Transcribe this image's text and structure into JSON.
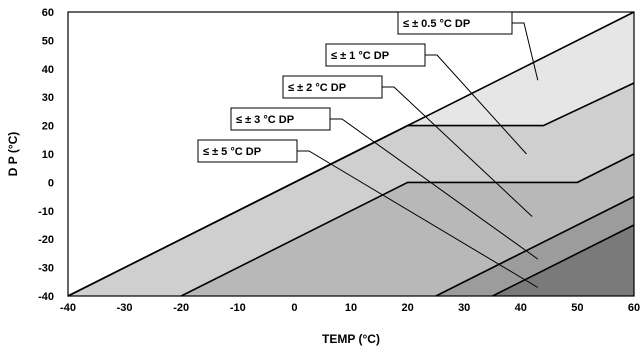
{
  "chart_data": {
    "type": "area",
    "xlabel": "TEMP (°C)",
    "ylabel": "D P (°C)",
    "xlim": [
      -40,
      60
    ],
    "ylim": [
      -40,
      60
    ],
    "xticks": [
      -40,
      -30,
      -20,
      -10,
      0,
      10,
      20,
      30,
      40,
      50,
      60
    ],
    "yticks": [
      -40,
      -30,
      -20,
      -10,
      0,
      10,
      20,
      30,
      40,
      50,
      60
    ],
    "grid": false,
    "series": [
      {
        "name": "≤ ± 0.5 °C DP",
        "color": "#e6e6e6",
        "upper": [
          [
            -40,
            -40
          ],
          [
            60,
            60
          ]
        ],
        "lower": [
          [
            -40,
            -40
          ],
          [
            20,
            20
          ],
          [
            44,
            20
          ],
          [
            60,
            35
          ]
        ],
        "leader_to": [
          43,
          36
        ]
      },
      {
        "name": "≤ ± 1 °C DP",
        "color": "#cfcfcf",
        "upper": [
          [
            -40,
            -40
          ],
          [
            20,
            20
          ],
          [
            44,
            20
          ],
          [
            60,
            35
          ]
        ],
        "lower": [
          [
            -20,
            -40
          ],
          [
            20,
            0
          ],
          [
            50,
            0
          ],
          [
            60,
            10
          ]
        ],
        "leader_to": [
          41,
          10
        ]
      },
      {
        "name": "≤ ± 2 °C DP",
        "color": "#b8b8b8",
        "upper": [
          [
            -20,
            -40
          ],
          [
            20,
            0
          ],
          [
            50,
            0
          ],
          [
            60,
            10
          ]
        ],
        "lower": [
          [
            25,
            -40
          ],
          [
            60,
            -5
          ]
        ],
        "leader_to": [
          42,
          -12
        ]
      },
      {
        "name": "≤ ± 3 °C DP",
        "color": "#9c9c9c",
        "upper": [
          [
            25,
            -40
          ],
          [
            60,
            -5
          ]
        ],
        "lower": [
          [
            35,
            -40
          ],
          [
            60,
            -15
          ]
        ],
        "leader_to": [
          43,
          -27
        ]
      },
      {
        "name": "≤ ± 5 °C DP",
        "color": "#7a7a7a",
        "upper": [
          [
            35,
            -40
          ],
          [
            60,
            -15
          ]
        ],
        "lower": [
          [
            60,
            -40
          ]
        ],
        "leader_to": [
          43,
          -37
        ]
      }
    ]
  }
}
